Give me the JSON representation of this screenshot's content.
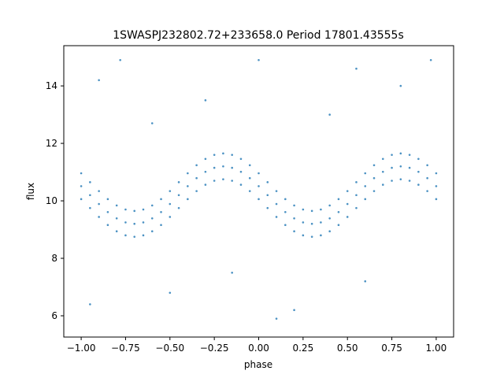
{
  "chart_data": {
    "type": "scatter",
    "title": "1SWASPJ232802.72+233658.0 Period 17801.43555s",
    "x_label": "phase",
    "y_label": "flux",
    "color": "#1f77b4",
    "xlim": [
      -1.098,
      1.098
    ],
    "ylim": [
      5.26,
      15.4
    ],
    "xticks": [
      {
        "value": -1,
        "label": "−1.00"
      },
      {
        "value": -0.75,
        "label": "−0.75"
      },
      {
        "value": -0.5,
        "label": "−0.50"
      },
      {
        "value": -0.25,
        "label": "−0.25"
      },
      {
        "value": 0,
        "label": "0.00"
      },
      {
        "value": 0.25,
        "label": "0.25"
      },
      {
        "value": 0.5,
        "label": "0.50"
      },
      {
        "value": 0.75,
        "label": "0.75"
      },
      {
        "value": 1,
        "label": "1.00"
      }
    ],
    "yticks": [
      6,
      8,
      10,
      12,
      14
    ],
    "x": [
      -1,
      -0.95,
      -0.9,
      -0.85,
      -0.8,
      -0.75,
      -0.7,
      -0.65,
      -0.6,
      -0.55,
      -0.5,
      -0.45,
      -0.4,
      -0.35,
      -0.3,
      -0.25,
      -0.2,
      -0.15,
      -0.1,
      -0.05,
      0,
      0.05,
      0.1,
      0.15,
      0.2,
      0.25,
      0.3,
      0.35,
      0.4,
      0.45,
      0.5,
      0.55,
      0.6,
      0.65,
      0.7,
      0.75,
      0.8,
      0.85,
      0.9,
      0.95,
      1,
      -1,
      -0.95,
      -0.9,
      -0.85,
      -0.8,
      -0.75,
      -0.7,
      -0.65,
      -0.6,
      -0.55,
      -0.5,
      -0.45,
      -0.4,
      -0.35,
      -0.3,
      -0.25,
      -0.2,
      -0.15,
      -0.1,
      -0.05,
      0,
      0.05,
      0.1,
      0.15,
      0.2,
      0.25,
      0.3,
      0.35,
      0.4,
      0.45,
      0.5,
      0.55,
      0.6,
      0.65,
      0.7,
      0.75,
      0.8,
      0.85,
      0.9,
      0.95,
      1,
      -1,
      -0.95,
      -0.9,
      -0.85,
      -0.8,
      -0.75,
      -0.7,
      -0.65,
      -0.6,
      -0.55,
      -0.5,
      -0.45,
      -0.4,
      -0.35,
      -0.3,
      -0.25,
      -0.2,
      -0.15,
      -0.1,
      -0.05,
      0,
      0.05,
      0.1,
      0.15,
      0.2,
      0.25,
      0.3,
      0.35,
      0.4,
      0.45,
      0.5,
      0.55,
      0.6,
      0.65,
      0.7,
      0.75,
      0.8,
      0.85,
      0.9,
      0.95,
      1,
      -0.9,
      -0.78,
      -0.5,
      -0.3,
      0,
      0.2,
      0.4,
      0.6,
      0.8,
      0.97,
      -0.95,
      0.1,
      -0.6,
      0.55,
      -0.15
    ],
    "values": [
      10.51,
      10.2,
      9.89,
      9.61,
      9.39,
      9.25,
      9.2,
      9.25,
      9.39,
      9.61,
      9.89,
      10.2,
      10.51,
      10.79,
      11.01,
      11.15,
      11.2,
      11.15,
      11.01,
      10.79,
      10.51,
      10.2,
      9.89,
      9.61,
      9.39,
      9.25,
      9.2,
      9.25,
      9.39,
      9.61,
      9.89,
      10.2,
      10.51,
      10.79,
      11.01,
      11.15,
      11.2,
      11.15,
      11.01,
      10.79,
      10.51,
      10.96,
      10.65,
      10.34,
      10.06,
      9.84,
      9.7,
      9.65,
      9.7,
      9.84,
      10.06,
      10.34,
      10.65,
      10.96,
      11.24,
      11.46,
      11.6,
      11.65,
      11.6,
      11.46,
      11.24,
      10.96,
      10.65,
      10.34,
      10.06,
      9.84,
      9.7,
      9.65,
      9.7,
      9.84,
      10.06,
      10.34,
      10.65,
      10.96,
      11.24,
      11.46,
      11.6,
      11.65,
      11.6,
      11.46,
      11.24,
      10.96,
      10.06,
      9.75,
      9.44,
      9.16,
      8.94,
      8.8,
      8.75,
      8.8,
      8.94,
      9.16,
      9.44,
      9.75,
      10.06,
      10.34,
      10.56,
      10.7,
      10.75,
      10.7,
      10.56,
      10.34,
      10.06,
      9.75,
      9.44,
      9.16,
      8.94,
      8.8,
      8.75,
      8.8,
      8.94,
      9.16,
      9.44,
      9.75,
      10.06,
      10.34,
      10.56,
      10.7,
      10.75,
      10.7,
      10.56,
      10.34,
      10.06,
      14.2,
      14.9,
      6.8,
      13.5,
      14.9,
      6.2,
      13,
      7.2,
      14,
      14.9,
      6.4,
      5.9,
      12.7,
      14.6,
      7.5
    ]
  }
}
